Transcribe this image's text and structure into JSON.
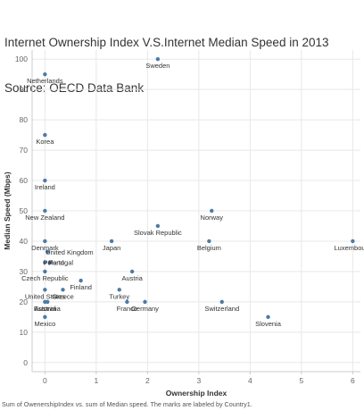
{
  "title_lines": [
    "Internet Ownership Index V.S.Internet Median Speed in 2013",
    "Source: OECD Data Bank"
  ],
  "caption": "Sum of OwenershipIndex vs. sum of Median speed.  The marks are labeled by Country1.",
  "colors": {
    "point": "#4e79a7",
    "grid": "#e8e8e8",
    "axis": "#cccccc",
    "text": "#333333"
  },
  "chart_data": {
    "type": "scatter",
    "xlabel": "Ownership Index",
    "ylabel": "Median Speed (Mbps)",
    "xlim": [
      -0.25,
      6.15
    ],
    "ylim": [
      -3,
      103
    ],
    "xticks": [
      0,
      1,
      2,
      3,
      4,
      5,
      6
    ],
    "yticks": [
      0,
      10,
      20,
      30,
      40,
      50,
      60,
      70,
      80,
      90,
      100
    ],
    "grid": true,
    "legend": "none",
    "points": [
      {
        "label": "Sweden",
        "x": 2.2,
        "y": 100,
        "label_pos": "below"
      },
      {
        "label": "Netherlands",
        "x": 0.0,
        "y": 95,
        "label_pos": "below"
      },
      {
        "label": "Korea",
        "x": 0.0,
        "y": 75,
        "label_pos": "below"
      },
      {
        "label": "Ireland",
        "x": 0.0,
        "y": 60,
        "label_pos": "below"
      },
      {
        "label": "New Zealand",
        "x": 0.0,
        "y": 50,
        "label_pos": "below"
      },
      {
        "label": "Norway",
        "x": 3.25,
        "y": 50,
        "label_pos": "below"
      },
      {
        "label": "Slovak Republic",
        "x": 2.2,
        "y": 45,
        "label_pos": "below"
      },
      {
        "label": "Denmark",
        "x": 0.0,
        "y": 40,
        "label_pos": "below"
      },
      {
        "label": "Japan",
        "x": 1.3,
        "y": 40,
        "label_pos": "below"
      },
      {
        "label": "Belgium",
        "x": 3.2,
        "y": 40,
        "label_pos": "below"
      },
      {
        "label": "Luxembourg",
        "x": 6.0,
        "y": 40,
        "label_pos": "below"
      },
      {
        "label": "United Kingdom",
        "x": 0.05,
        "y": 36.5,
        "label_pos": "right"
      },
      {
        "label": "Poland",
        "x": 0.0,
        "y": 33,
        "label_pos": "right"
      },
      {
        "label": "Portugal",
        "x": 0.1,
        "y": 33,
        "label_pos": "right"
      },
      {
        "label": "Czech Republic",
        "x": 0.0,
        "y": 30,
        "label_pos": "below"
      },
      {
        "label": "Austria",
        "x": 1.7,
        "y": 30,
        "label_pos": "below"
      },
      {
        "label": "Finland",
        "x": 0.7,
        "y": 27,
        "label_pos": "below"
      },
      {
        "label": "Turkey",
        "x": 1.45,
        "y": 24,
        "label_pos": "below"
      },
      {
        "label": "United States",
        "x": 0.0,
        "y": 24,
        "label_pos": "below"
      },
      {
        "label": "Greece",
        "x": 0.35,
        "y": 24,
        "label_pos": "below"
      },
      {
        "label": "France",
        "x": 1.6,
        "y": 20,
        "label_pos": "below"
      },
      {
        "label": "Germany",
        "x": 1.95,
        "y": 20,
        "label_pos": "below"
      },
      {
        "label": "Switzerland",
        "x": 3.45,
        "y": 20,
        "label_pos": "below"
      },
      {
        "label": "Estonia",
        "x": 0.0,
        "y": 20,
        "label_pos": "below"
      },
      {
        "label": "Australia",
        "x": 0.05,
        "y": 20,
        "label_pos": "below"
      },
      {
        "label": "Slovenia",
        "x": 4.35,
        "y": 15,
        "label_pos": "below"
      },
      {
        "label": "Mexico",
        "x": 0.0,
        "y": 15,
        "label_pos": "below"
      }
    ]
  }
}
